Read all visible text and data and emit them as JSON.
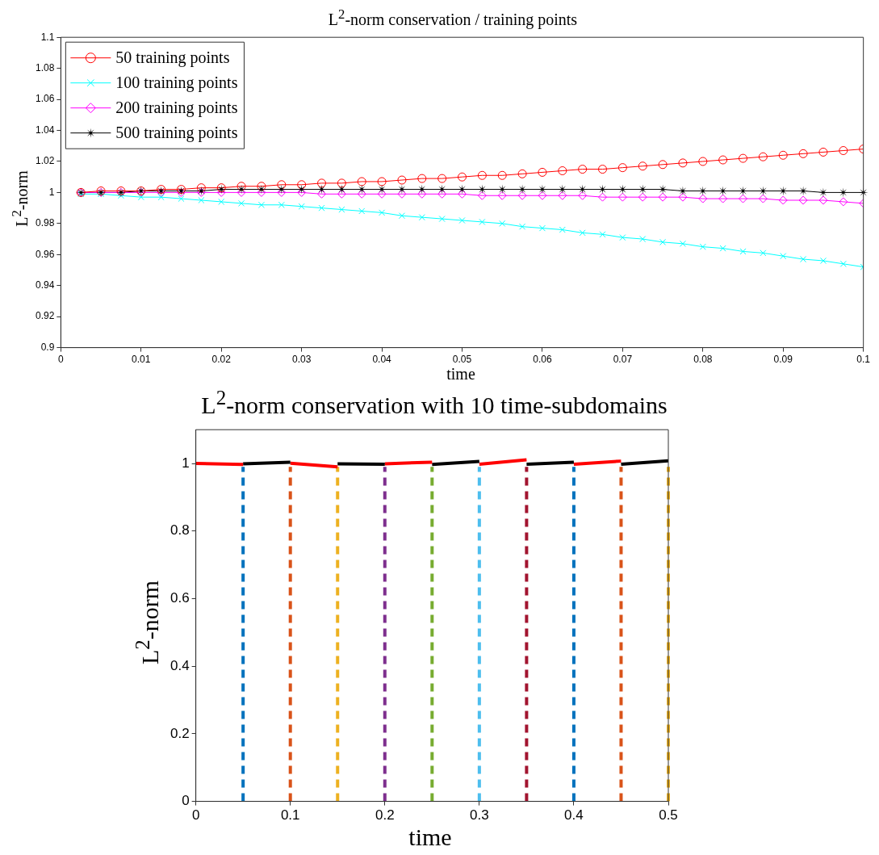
{
  "chart_data": [
    {
      "type": "line",
      "title": "L$^{2}$-norm conservation / training points",
      "xlabel": "time",
      "ylabel": "L$^{2}$-norm",
      "x": [
        0.0025,
        0.005,
        0.0075,
        0.01,
        0.0125,
        0.015,
        0.0175,
        0.02,
        0.0225,
        0.025,
        0.0275,
        0.03,
        0.0325,
        0.035,
        0.0375,
        0.04,
        0.0425,
        0.045,
        0.0475,
        0.05,
        0.0525,
        0.055,
        0.0575,
        0.06,
        0.0625,
        0.065,
        0.0675,
        0.07,
        0.0725,
        0.075,
        0.0775,
        0.08,
        0.0825,
        0.085,
        0.0875,
        0.09,
        0.0925,
        0.095,
        0.0975,
        0.1
      ],
      "xlim": [
        0,
        0.1
      ],
      "xticks": [
        0,
        0.01,
        0.02,
        0.03,
        0.04,
        0.05,
        0.06,
        0.07,
        0.08,
        0.09,
        0.1
      ],
      "ylim": [
        0.9,
        1.1
      ],
      "yticks": [
        0.9,
        0.92,
        0.94,
        0.96,
        0.98,
        1,
        1.02,
        1.04,
        1.06,
        1.08,
        1.1
      ],
      "grid": false,
      "legend": "top left",
      "series": [
        {
          "name": "50 training points",
          "color": "#ff0000",
          "marker": "circle",
          "values": [
            1.0,
            1.001,
            1.001,
            1.001,
            1.002,
            1.002,
            1.003,
            1.003,
            1.004,
            1.004,
            1.005,
            1.005,
            1.006,
            1.006,
            1.007,
            1.007,
            1.008,
            1.009,
            1.009,
            1.01,
            1.011,
            1.011,
            1.012,
            1.013,
            1.014,
            1.015,
            1.015,
            1.016,
            1.017,
            1.018,
            1.019,
            1.02,
            1.021,
            1.022,
            1.023,
            1.024,
            1.025,
            1.026,
            1.027,
            1.028
          ]
        },
        {
          "name": "100 training points",
          "color": "#00ffff",
          "marker": "cross",
          "values": [
            0.999,
            0.999,
            0.998,
            0.997,
            0.997,
            0.996,
            0.995,
            0.994,
            0.993,
            0.992,
            0.992,
            0.991,
            0.99,
            0.989,
            0.988,
            0.987,
            0.985,
            0.984,
            0.983,
            0.982,
            0.981,
            0.98,
            0.978,
            0.977,
            0.976,
            0.974,
            0.973,
            0.971,
            0.97,
            0.968,
            0.967,
            0.965,
            0.964,
            0.962,
            0.961,
            0.959,
            0.957,
            0.956,
            0.954,
            0.952
          ]
        },
        {
          "name": "200 training points",
          "color": "#ff00ff",
          "marker": "diamond",
          "values": [
            1,
            1,
            1,
            1,
            1,
            1,
            1,
            1,
            1,
            1,
            1,
            1,
            0.999,
            0.999,
            0.999,
            0.999,
            0.999,
            0.999,
            0.999,
            0.999,
            0.998,
            0.998,
            0.998,
            0.998,
            0.998,
            0.998,
            0.997,
            0.997,
            0.997,
            0.997,
            0.997,
            0.996,
            0.996,
            0.996,
            0.996,
            0.995,
            0.995,
            0.995,
            0.994,
            0.993
          ]
        },
        {
          "name": "500 training points",
          "color": "#000000",
          "marker": "star",
          "values": [
            1,
            1,
            1,
            1.001,
            1.001,
            1.001,
            1.001,
            1.002,
            1.002,
            1.002,
            1.002,
            1.002,
            1.002,
            1.002,
            1.002,
            1.002,
            1.002,
            1.002,
            1.002,
            1.002,
            1.002,
            1.002,
            1.002,
            1.002,
            1.002,
            1.002,
            1.002,
            1.002,
            1.002,
            1.002,
            1.001,
            1.001,
            1.001,
            1.001,
            1.001,
            1.001,
            1.001,
            1,
            1,
            1
          ]
        }
      ]
    },
    {
      "type": "line",
      "title": "L$^{2}$-norm conservation with 10 time-subdomains",
      "xlabel": "time",
      "ylabel": "L$^{2}$-norm",
      "xlim": [
        0,
        0.5
      ],
      "xticks": [
        0,
        0.1,
        0.2,
        0.3,
        0.4,
        0.5
      ],
      "ylim": [
        0,
        1.1
      ],
      "yticks": [
        0,
        0.2,
        0.4,
        0.6,
        0.8,
        1
      ],
      "grid": false,
      "legend": false,
      "marker": "none",
      "series": [
        {
          "color": "#ff0000",
          "x": [
            0,
            0.05
          ],
          "values": [
            1.0,
            0.997
          ]
        },
        {
          "color": "#000000",
          "x": [
            0.05,
            0.1
          ],
          "values": [
            0.999,
            1.004
          ]
        },
        {
          "color": "#ff0000",
          "x": [
            0.1,
            0.15
          ],
          "values": [
            1.001,
            0.99
          ]
        },
        {
          "color": "#000000",
          "x": [
            0.15,
            0.2
          ],
          "values": [
            0.999,
            0.998
          ]
        },
        {
          "color": "#ff0000",
          "x": [
            0.2,
            0.25
          ],
          "values": [
            0.999,
            1.004
          ]
        },
        {
          "color": "#000000",
          "x": [
            0.25,
            0.3
          ],
          "values": [
            0.997,
            1.006
          ]
        },
        {
          "color": "#ff0000",
          "x": [
            0.3,
            0.35
          ],
          "values": [
            0.998,
            1.011
          ]
        },
        {
          "color": "#000000",
          "x": [
            0.35,
            0.4
          ],
          "values": [
            0.998,
            1.004
          ]
        },
        {
          "color": "#ff0000",
          "x": [
            0.4,
            0.45
          ],
          "values": [
            0.998,
            1.007
          ]
        },
        {
          "color": "#000000",
          "x": [
            0.45,
            0.5
          ],
          "values": [
            0.998,
            1.008
          ]
        }
      ],
      "ref_lines": [
        {
          "axis": "x",
          "value": 0.05,
          "color": "#0072bd",
          "line_style": "dashed"
        },
        {
          "axis": "x",
          "value": 0.1,
          "color": "#d95319",
          "line_style": "dashed"
        },
        {
          "axis": "x",
          "value": 0.15,
          "color": "#edb120",
          "line_style": "dashed"
        },
        {
          "axis": "x",
          "value": 0.2,
          "color": "#7e2f8e",
          "line_style": "dashed"
        },
        {
          "axis": "x",
          "value": 0.25,
          "color": "#77ac30",
          "line_style": "dashed"
        },
        {
          "axis": "x",
          "value": 0.3,
          "color": "#4dbeee",
          "line_style": "dashed"
        },
        {
          "axis": "x",
          "value": 0.35,
          "color": "#a2142f",
          "line_style": "dashed"
        },
        {
          "axis": "x",
          "value": 0.4,
          "color": "#0072bd",
          "line_style": "dashed"
        },
        {
          "axis": "x",
          "value": 0.45,
          "color": "#d95319",
          "line_style": "dashed"
        },
        {
          "axis": "x",
          "value": 0.5,
          "color": "#edb120",
          "line_style": "dashed"
        }
      ]
    }
  ]
}
